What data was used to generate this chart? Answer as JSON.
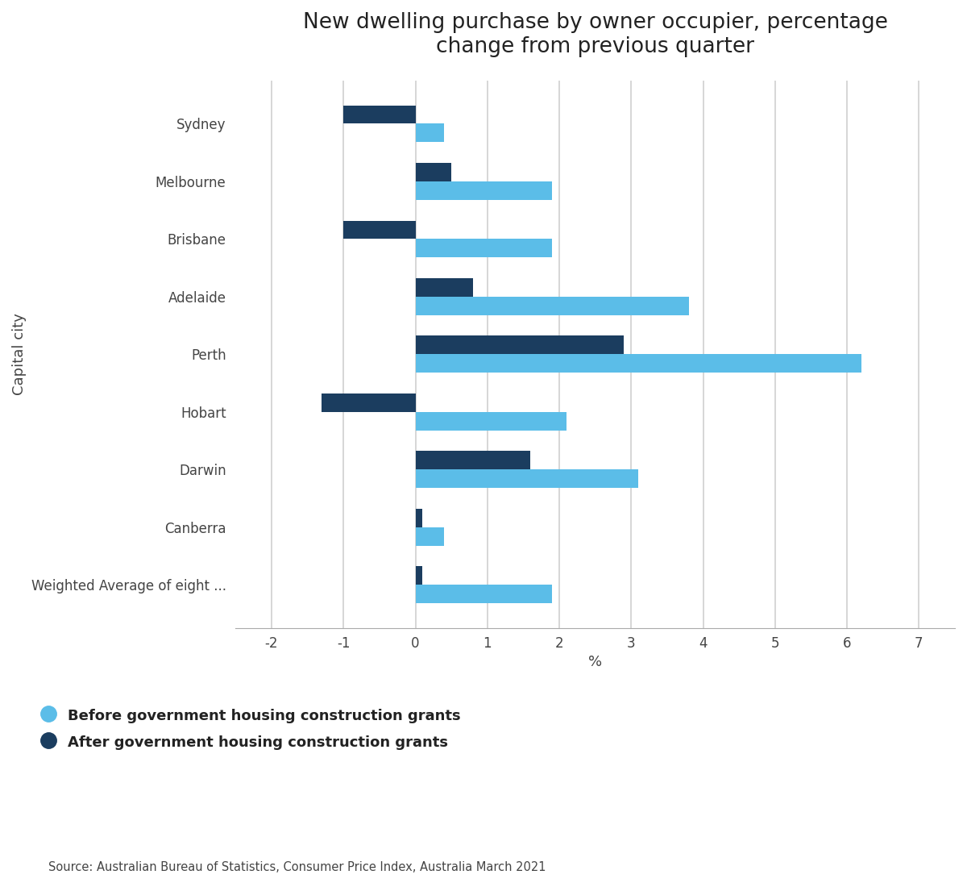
{
  "title": "New dwelling purchase by owner occupier, percentage\nchange from previous quarter",
  "categories": [
    "Sydney",
    "Melbourne",
    "Brisbane",
    "Adelaide",
    "Perth",
    "Hobart",
    "Darwin",
    "Canberra",
    "Weighted Average of eight ..."
  ],
  "before": [
    0.4,
    1.9,
    1.9,
    3.8,
    6.2,
    2.1,
    3.1,
    0.4,
    1.9
  ],
  "after": [
    -1.0,
    0.5,
    -1.0,
    0.8,
    2.9,
    -1.3,
    1.6,
    0.1,
    0.1
  ],
  "color_before": "#5bbde8",
  "color_after": "#1b3d5f",
  "xlabel": "%",
  "ylabel": "Capital city",
  "xlim": [
    -2.5,
    7.5
  ],
  "xticks": [
    -2,
    -1,
    0,
    1,
    2,
    3,
    4,
    5,
    6,
    7
  ],
  "legend_before": "Before government housing construction grants",
  "legend_after": "After government housing construction grants",
  "source": "Source: Australian Bureau of Statistics, Consumer Price Index, Australia March 2021",
  "background_color": "#ffffff",
  "bar_height": 0.32,
  "title_fontsize": 19,
  "label_fontsize": 13,
  "tick_fontsize": 12,
  "grid_color": "#d0d0d0"
}
